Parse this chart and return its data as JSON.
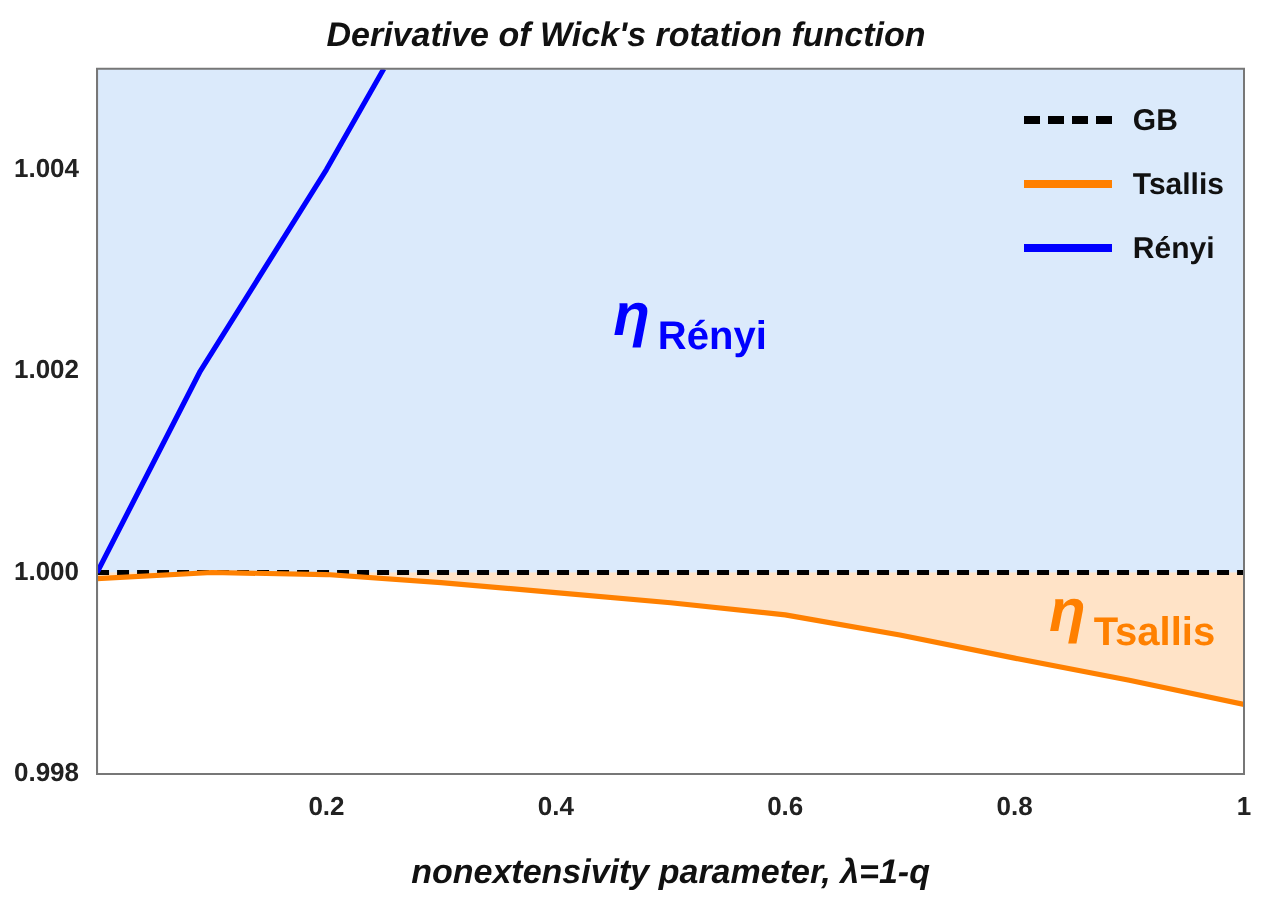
{
  "chart_data": {
    "type": "line",
    "title": "Derivative of Wick's rotation function",
    "xlabel": "nonextensivity parameter, λ=1-q",
    "xlim": [
      0,
      1
    ],
    "xticks": [
      0.2,
      0.4,
      0.6,
      0.8,
      1
    ],
    "ylim": [
      0.998,
      1.005
    ],
    "yticks": [
      {
        "value": 0.998,
        "label": "0.998"
      },
      {
        "value": 1.0,
        "label": "1.000"
      },
      {
        "value": 1.002,
        "label": "1.002"
      },
      {
        "value": 1.004,
        "label": "1.004"
      }
    ],
    "grid": false,
    "legend": "top right",
    "marker": "none",
    "series": [
      {
        "name": "GB",
        "color": "#000000",
        "line_style": "dashed",
        "x": [
          0,
          1
        ],
        "values": [
          1.0,
          1.0
        ]
      },
      {
        "name": "Tsallis",
        "color": "#ff8000",
        "x": [
          0,
          0.1,
          0.2,
          0.3,
          0.4,
          0.5,
          0.6,
          0.7,
          0.8,
          0.9,
          1
        ],
        "values": [
          0.99994,
          1.0,
          0.99998,
          0.9999,
          0.9998,
          0.9997,
          0.99958,
          0.99938,
          0.99915,
          0.99893,
          0.99869
        ],
        "lower": [
          0.99994,
          1.0,
          0.99998,
          0.9999,
          0.9998,
          0.9997,
          0.99958,
          0.99938,
          0.99915,
          0.99893,
          0.99869
        ],
        "upper": [
          1.0,
          1.0,
          1.0,
          1.0,
          1.0,
          1.0,
          1.0,
          1.0,
          1.0,
          1.0,
          1.0
        ]
      },
      {
        "name": "Rényi",
        "color": "#0000ff",
        "x": [
          0,
          0.09,
          0.2,
          0.25
        ],
        "values": [
          1.0,
          1.002,
          1.004,
          1.005
        ]
      }
    ],
    "bands": [
      {
        "axis": "y",
        "from": 1.0,
        "to": 1.005,
        "color": "#dbeafb"
      }
    ],
    "annotations": [
      "η$_{Rényi}$",
      "η$_{Tsallis}$"
    ]
  }
}
